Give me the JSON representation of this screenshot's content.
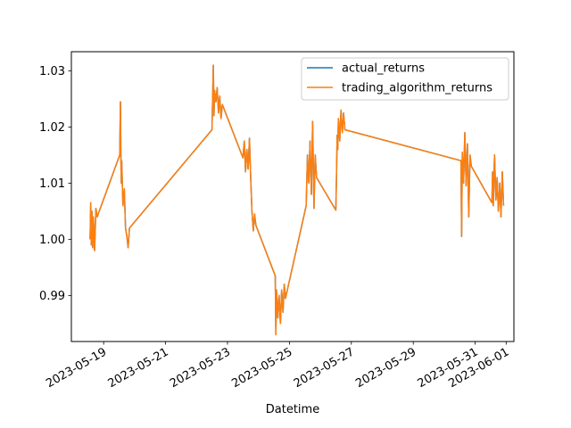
{
  "chart_data": {
    "type": "line",
    "title": "",
    "xlabel": "Datetime",
    "ylabel": "",
    "x_tick_labels": [
      "2023-05-19",
      "2023-05-21",
      "2023-05-23",
      "2023-05-25",
      "2023-05-27",
      "2023-05-29",
      "2023-05-31",
      "2023-06-01"
    ],
    "x_tick_dates": [
      "2023-05-19",
      "2023-05-21",
      "2023-05-23",
      "2023-05-25",
      "2023-05-27",
      "2023-05-29",
      "2023-05-31",
      "2023-06-01"
    ],
    "y_ticks": [
      0.99,
      1.0,
      1.01,
      1.02,
      1.03
    ],
    "y_tick_labels": [
      "0.99",
      "1.00",
      "1.01",
      "1.02",
      "1.03"
    ],
    "xlim": [
      "2023-05-17T23:00",
      "2023-06-01T06:00"
    ],
    "ylim": [
      0.9818,
      1.0334
    ],
    "grid": false,
    "legend_position": "upper right",
    "series": [
      {
        "name": "actual_returns",
        "color": "#1f77b4",
        "points": [
          [
            "2023-05-18T13:30",
            1.0
          ],
          [
            "2023-05-18T14:00",
            1.0065
          ],
          [
            "2023-05-18T14:30",
            0.999
          ],
          [
            "2023-05-18T15:00",
            1.005
          ],
          [
            "2023-05-18T15:30",
            0.9985
          ],
          [
            "2023-05-18T16:00",
            1.004
          ],
          [
            "2023-05-18T17:00",
            0.998
          ],
          [
            "2023-05-18T18:00",
            1.0055
          ],
          [
            "2023-05-18T19:00",
            1.004
          ],
          [
            "2023-05-19T12:30",
            1.015
          ],
          [
            "2023-05-19T13:00",
            1.0245
          ],
          [
            "2023-05-19T13:20",
            1.016
          ],
          [
            "2023-05-19T13:40",
            1.01
          ],
          [
            "2023-05-19T14:00",
            1.014
          ],
          [
            "2023-05-19T15:00",
            1.006
          ],
          [
            "2023-05-19T16:00",
            1.009
          ],
          [
            "2023-05-19T17:00",
            1.002
          ],
          [
            "2023-05-19T18:00",
            1.0005
          ],
          [
            "2023-05-19T19:00",
            0.9985
          ],
          [
            "2023-05-19T20:00",
            1.002
          ],
          [
            "2023-05-22T12:00",
            1.0195
          ],
          [
            "2023-05-22T13:00",
            1.031
          ],
          [
            "2023-05-22T13:30",
            1.022
          ],
          [
            "2023-05-22T14:00",
            1.0265
          ],
          [
            "2023-05-22T15:00",
            1.0245
          ],
          [
            "2023-05-22T16:00",
            1.027
          ],
          [
            "2023-05-22T17:00",
            1.0225
          ],
          [
            "2023-05-22T18:00",
            1.0255
          ],
          [
            "2023-05-22T19:00",
            1.0215
          ],
          [
            "2023-05-22T20:00",
            1.024
          ],
          [
            "2023-05-23T12:00",
            1.0145
          ],
          [
            "2023-05-23T13:00",
            1.0175
          ],
          [
            "2023-05-23T14:00",
            1.012
          ],
          [
            "2023-05-23T15:00",
            1.016
          ],
          [
            "2023-05-23T16:00",
            1.0125
          ],
          [
            "2023-05-23T17:00",
            1.018
          ],
          [
            "2023-05-23T18:00",
            1.011
          ],
          [
            "2023-05-23T19:00",
            1.005
          ],
          [
            "2023-05-23T20:00",
            1.0015
          ],
          [
            "2023-05-23T21:00",
            1.0045
          ],
          [
            "2023-05-23T22:00",
            1.0025
          ],
          [
            "2023-05-24T13:00",
            0.9935
          ],
          [
            "2023-05-24T13:30",
            0.983
          ],
          [
            "2023-05-24T14:00",
            0.991
          ],
          [
            "2023-05-24T15:00",
            0.986
          ],
          [
            "2023-05-24T16:00",
            0.99
          ],
          [
            "2023-05-24T17:00",
            0.985
          ],
          [
            "2023-05-24T18:00",
            0.991
          ],
          [
            "2023-05-24T19:00",
            0.987
          ],
          [
            "2023-05-24T20:00",
            0.992
          ],
          [
            "2023-05-24T21:00",
            0.9895
          ],
          [
            "2023-05-25T13:00",
            1.006
          ],
          [
            "2023-05-25T14:00",
            1.015
          ],
          [
            "2023-05-25T15:00",
            1.01
          ],
          [
            "2023-05-25T16:00",
            1.0175
          ],
          [
            "2023-05-25T17:00",
            1.008
          ],
          [
            "2023-05-25T18:00",
            1.021
          ],
          [
            "2023-05-25T19:00",
            1.0055
          ],
          [
            "2023-05-25T20:00",
            1.015
          ],
          [
            "2023-05-25T21:00",
            1.011
          ],
          [
            "2023-05-26T12:00",
            1.0052
          ],
          [
            "2023-05-26T12:30",
            1.0115
          ],
          [
            "2023-05-26T13:00",
            1.0185
          ],
          [
            "2023-05-26T13:30",
            1.016
          ],
          [
            "2023-05-26T14:00",
            1.0215
          ],
          [
            "2023-05-26T15:00",
            1.0175
          ],
          [
            "2023-05-26T16:00",
            1.023
          ],
          [
            "2023-05-26T17:00",
            1.019
          ],
          [
            "2023-05-26T18:00",
            1.0225
          ],
          [
            "2023-05-26T19:00",
            1.0195
          ],
          [
            "2023-05-30T13:00",
            1.014
          ],
          [
            "2023-05-30T13:30",
            1.0005
          ],
          [
            "2023-05-30T14:00",
            1.0155
          ],
          [
            "2023-05-30T15:00",
            1.01
          ],
          [
            "2023-05-30T16:00",
            1.019
          ],
          [
            "2023-05-30T17:00",
            1.0095
          ],
          [
            "2023-05-30T18:00",
            1.017
          ],
          [
            "2023-05-30T19:00",
            1.004
          ],
          [
            "2023-05-30T20:00",
            1.015
          ],
          [
            "2023-05-30T21:00",
            1.013
          ],
          [
            "2023-05-31T13:00",
            1.0065
          ],
          [
            "2023-05-31T13:30",
            1.012
          ],
          [
            "2023-05-31T14:00",
            1.006
          ],
          [
            "2023-05-31T15:00",
            1.015
          ],
          [
            "2023-05-31T16:00",
            1.007
          ],
          [
            "2023-05-31T17:00",
            1.011
          ],
          [
            "2023-05-31T18:00",
            1.005
          ],
          [
            "2023-05-31T19:00",
            1.01
          ],
          [
            "2023-05-31T20:00",
            1.004
          ],
          [
            "2023-05-31T21:00",
            1.012
          ],
          [
            "2023-05-31T22:00",
            1.006
          ]
        ]
      },
      {
        "name": "trading_algorithm_returns",
        "color": "#ff7f0e",
        "points": [
          [
            "2023-05-18T13:30",
            1.0
          ],
          [
            "2023-05-18T14:00",
            1.0065
          ],
          [
            "2023-05-18T14:30",
            0.999
          ],
          [
            "2023-05-18T15:00",
            1.005
          ],
          [
            "2023-05-18T15:30",
            0.9985
          ],
          [
            "2023-05-18T16:00",
            1.004
          ],
          [
            "2023-05-18T17:00",
            0.998
          ],
          [
            "2023-05-18T18:00",
            1.0055
          ],
          [
            "2023-05-18T19:00",
            1.004
          ],
          [
            "2023-05-19T12:30",
            1.015
          ],
          [
            "2023-05-19T13:00",
            1.0245
          ],
          [
            "2023-05-19T13:20",
            1.016
          ],
          [
            "2023-05-19T13:40",
            1.01
          ],
          [
            "2023-05-19T14:00",
            1.014
          ],
          [
            "2023-05-19T15:00",
            1.006
          ],
          [
            "2023-05-19T16:00",
            1.009
          ],
          [
            "2023-05-19T17:00",
            1.002
          ],
          [
            "2023-05-19T18:00",
            1.0005
          ],
          [
            "2023-05-19T19:00",
            0.9985
          ],
          [
            "2023-05-19T20:00",
            1.002
          ],
          [
            "2023-05-22T12:00",
            1.0195
          ],
          [
            "2023-05-22T13:00",
            1.031
          ],
          [
            "2023-05-22T13:30",
            1.022
          ],
          [
            "2023-05-22T14:00",
            1.0265
          ],
          [
            "2023-05-22T15:00",
            1.0245
          ],
          [
            "2023-05-22T16:00",
            1.027
          ],
          [
            "2023-05-22T17:00",
            1.0225
          ],
          [
            "2023-05-22T18:00",
            1.0255
          ],
          [
            "2023-05-22T19:00",
            1.0215
          ],
          [
            "2023-05-22T20:00",
            1.024
          ],
          [
            "2023-05-23T12:00",
            1.0145
          ],
          [
            "2023-05-23T13:00",
            1.0175
          ],
          [
            "2023-05-23T14:00",
            1.012
          ],
          [
            "2023-05-23T15:00",
            1.016
          ],
          [
            "2023-05-23T16:00",
            1.0125
          ],
          [
            "2023-05-23T17:00",
            1.018
          ],
          [
            "2023-05-23T18:00",
            1.011
          ],
          [
            "2023-05-23T19:00",
            1.005
          ],
          [
            "2023-05-23T20:00",
            1.0015
          ],
          [
            "2023-05-23T21:00",
            1.0045
          ],
          [
            "2023-05-23T22:00",
            1.0025
          ],
          [
            "2023-05-24T13:00",
            0.9935
          ],
          [
            "2023-05-24T13:30",
            0.983
          ],
          [
            "2023-05-24T14:00",
            0.991
          ],
          [
            "2023-05-24T15:00",
            0.986
          ],
          [
            "2023-05-24T16:00",
            0.99
          ],
          [
            "2023-05-24T17:00",
            0.985
          ],
          [
            "2023-05-24T18:00",
            0.991
          ],
          [
            "2023-05-24T19:00",
            0.987
          ],
          [
            "2023-05-24T20:00",
            0.992
          ],
          [
            "2023-05-24T21:00",
            0.9895
          ],
          [
            "2023-05-25T13:00",
            1.006
          ],
          [
            "2023-05-25T14:00",
            1.015
          ],
          [
            "2023-05-25T15:00",
            1.01
          ],
          [
            "2023-05-25T16:00",
            1.0175
          ],
          [
            "2023-05-25T17:00",
            1.008
          ],
          [
            "2023-05-25T18:00",
            1.021
          ],
          [
            "2023-05-25T19:00",
            1.0055
          ],
          [
            "2023-05-25T20:00",
            1.015
          ],
          [
            "2023-05-25T21:00",
            1.011
          ],
          [
            "2023-05-26T12:00",
            1.0052
          ],
          [
            "2023-05-26T12:30",
            1.0115
          ],
          [
            "2023-05-26T13:00",
            1.0185
          ],
          [
            "2023-05-26T13:30",
            1.016
          ],
          [
            "2023-05-26T14:00",
            1.0215
          ],
          [
            "2023-05-26T15:00",
            1.0175
          ],
          [
            "2023-05-26T16:00",
            1.023
          ],
          [
            "2023-05-26T17:00",
            1.019
          ],
          [
            "2023-05-26T18:00",
            1.0225
          ],
          [
            "2023-05-26T19:00",
            1.0195
          ],
          [
            "2023-05-30T13:00",
            1.014
          ],
          [
            "2023-05-30T13:30",
            1.0005
          ],
          [
            "2023-05-30T14:00",
            1.0155
          ],
          [
            "2023-05-30T15:00",
            1.01
          ],
          [
            "2023-05-30T16:00",
            1.019
          ],
          [
            "2023-05-30T17:00",
            1.0095
          ],
          [
            "2023-05-30T18:00",
            1.017
          ],
          [
            "2023-05-30T19:00",
            1.004
          ],
          [
            "2023-05-30T20:00",
            1.015
          ],
          [
            "2023-05-30T21:00",
            1.013
          ],
          [
            "2023-05-31T13:00",
            1.0065
          ],
          [
            "2023-05-31T13:30",
            1.012
          ],
          [
            "2023-05-31T14:00",
            1.006
          ],
          [
            "2023-05-31T15:00",
            1.015
          ],
          [
            "2023-05-31T16:00",
            1.007
          ],
          [
            "2023-05-31T17:00",
            1.011
          ],
          [
            "2023-05-31T18:00",
            1.005
          ],
          [
            "2023-05-31T19:00",
            1.01
          ],
          [
            "2023-05-31T20:00",
            1.004
          ],
          [
            "2023-05-31T21:00",
            1.012
          ],
          [
            "2023-05-31T22:00",
            1.006
          ]
        ]
      }
    ]
  }
}
